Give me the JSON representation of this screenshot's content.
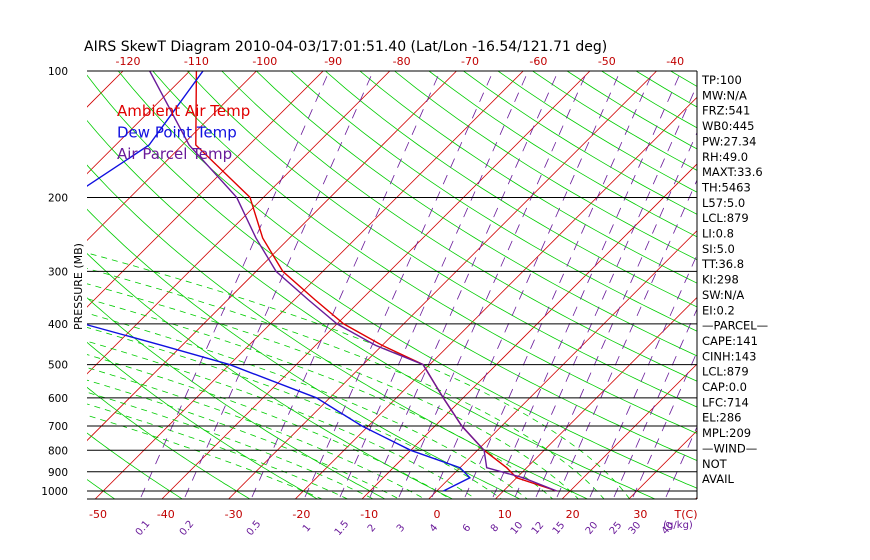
{
  "chart_data": {
    "type": "line",
    "title": "AIRS SkewT Diagram 2010-04-03/17:01:51.40 (Lat/Lon -16.54/121.71 deg)",
    "ylabel": "PRESSURE (MB)",
    "y_scale": "log",
    "ylim": [
      1050,
      100
    ],
    "p_ticks": [
      100,
      200,
      300,
      400,
      500,
      600,
      700,
      800,
      900,
      1000
    ],
    "t_top_ticks": [
      -120,
      -110,
      -100,
      -90,
      -80,
      -70,
      -60,
      -50,
      -40
    ],
    "t_bottom_ticks": [
      -50,
      -40,
      -30,
      -20,
      -10,
      0,
      10,
      20,
      30
    ],
    "t_bottom_unit": "T(C)",
    "mixing_ratio_labels": [
      "0.1",
      "0.2",
      "0.5",
      "1",
      "1.5",
      "2",
      "3",
      "4",
      "6",
      "8",
      "10",
      "12",
      "15",
      "20",
      "25",
      "30",
      "40"
    ],
    "mixing_unit": "(g/kg)",
    "legend": [
      {
        "name": "Ambient Air Temp",
        "color": "#e00000"
      },
      {
        "name": "Dew Point Temp",
        "color": "#1010e0"
      },
      {
        "name": "Air Parcel Temp",
        "color": "#6a1b9a"
      }
    ],
    "series": [
      {
        "name": "Ambient Air Temp",
        "color": "#e00000",
        "points": [
          [
            100,
            -89
          ],
          [
            150,
            -78
          ],
          [
            200,
            -62
          ],
          [
            250,
            -54
          ],
          [
            300,
            -46
          ],
          [
            350,
            -37
          ],
          [
            400,
            -29
          ],
          [
            450,
            -20
          ],
          [
            500,
            -11
          ],
          [
            600,
            -3
          ],
          [
            700,
            4
          ],
          [
            800,
            11
          ],
          [
            880,
            17
          ],
          [
            930,
            20
          ],
          [
            1000,
            28
          ]
        ]
      },
      {
        "name": "Dew Point Temp",
        "color": "#1010e0",
        "points": [
          [
            100,
            -88
          ],
          [
            150,
            -85
          ],
          [
            200,
            -89
          ],
          [
            250,
            -95
          ],
          [
            300,
            -88
          ],
          [
            350,
            -79
          ],
          [
            400,
            -68
          ],
          [
            450,
            -53
          ],
          [
            500,
            -40
          ],
          [
            600,
            -22
          ],
          [
            700,
            -11
          ],
          [
            800,
            0
          ],
          [
            880,
            10
          ],
          [
            930,
            13
          ],
          [
            1000,
            11
          ]
        ]
      },
      {
        "name": "Air Parcel Temp",
        "color": "#6a1b9a",
        "points": [
          [
            100,
            -96
          ],
          [
            150,
            -79
          ],
          [
            200,
            -64
          ],
          [
            250,
            -55
          ],
          [
            300,
            -47
          ],
          [
            350,
            -38
          ],
          [
            400,
            -30
          ],
          [
            450,
            -21
          ],
          [
            500,
            -11
          ],
          [
            600,
            -3
          ],
          [
            700,
            4
          ],
          [
            800,
            11
          ],
          [
            880,
            14
          ],
          [
            930,
            21
          ],
          [
            1000,
            28
          ]
        ]
      }
    ],
    "indices": [
      "TP:100",
      "MW:N/A",
      "FRZ:541",
      "WB0:445",
      "PW:27.34",
      "RH:49.0",
      "MAXT:33.6",
      "TH:5463",
      "L57:5.0",
      "LCL:879",
      "LI:0.8",
      "SI:5.0",
      "TT:36.8",
      "KI:298",
      "SW:N/A",
      "EI:0.2",
      "—PARCEL—",
      "CAPE:141",
      "CINH:143",
      "LCL:879",
      "CAP:0.0",
      "LFC:714",
      "EL:286",
      "MPL:209",
      "—WIND—",
      "NOT",
      "AVAIL"
    ],
    "colors": {
      "isotherm": "#d00000",
      "dry_adiabat": "#00cc00",
      "moist_adiabat": "#00cc00",
      "mixing_ratio": "#6a1b9a",
      "isobar": "#000000"
    }
  }
}
